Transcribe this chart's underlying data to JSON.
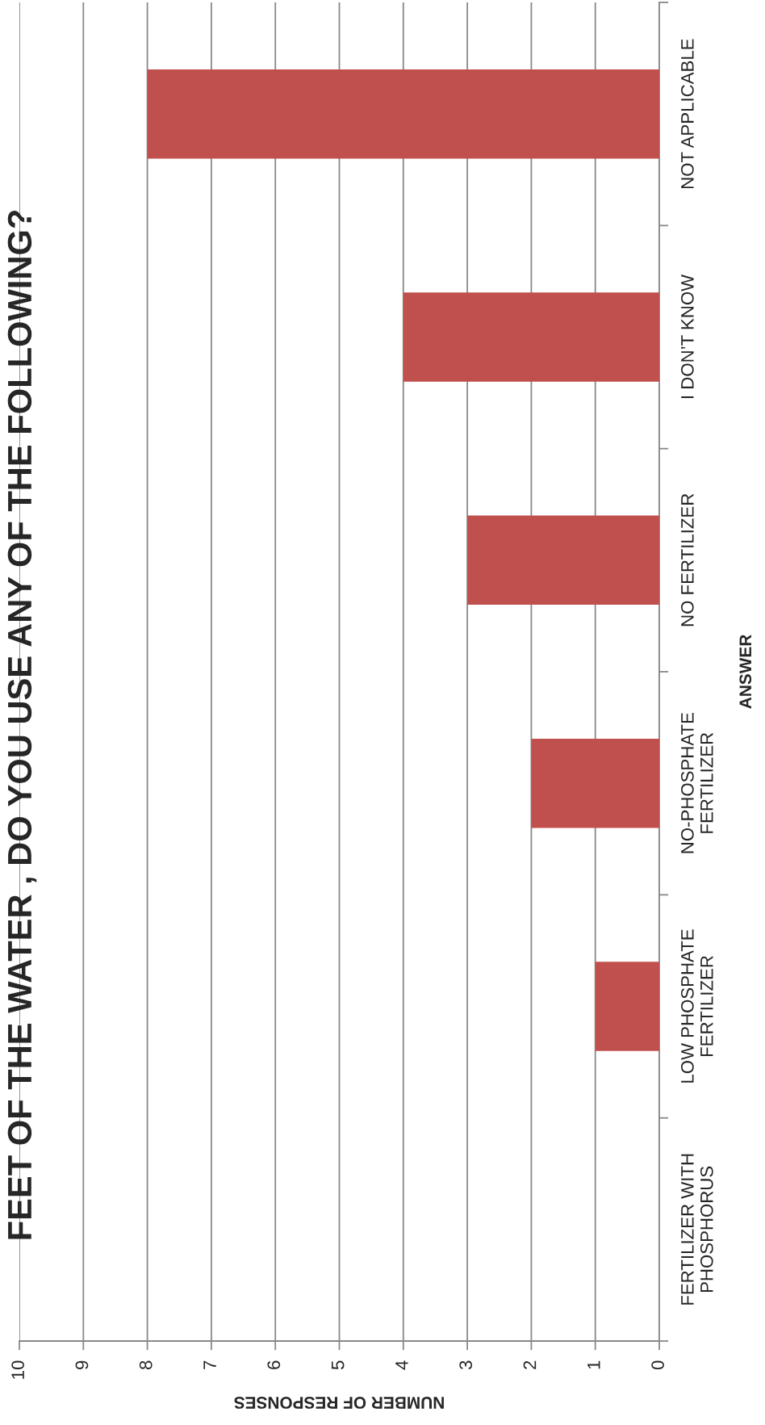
{
  "chart_data": {
    "type": "bar",
    "orientation": "horizontal",
    "title": "FEET OF THE WATER , DO YOU USE ANY OF THE FOLLOWING?",
    "xlabel": "NUMBER OF RESPONSES",
    "ylabel": "ANSWER",
    "categories": [
      "NOT APPLICABLE",
      "I DON’T KNOW",
      "NO FERTILIZER",
      "NO-PHOSPHATE\nFERTILIZER",
      "LOW PHOSPHATE\nFERTILIZER",
      "FERTILIZER WITH\nPHOSPHORUS"
    ],
    "values": [
      8,
      4,
      3,
      2,
      1,
      0
    ],
    "color": "#c0504d",
    "xlim": [
      10,
      0
    ],
    "xticks": [
      0,
      1,
      2,
      3,
      4,
      5,
      6,
      7,
      8,
      9,
      10
    ],
    "grid": "x"
  }
}
